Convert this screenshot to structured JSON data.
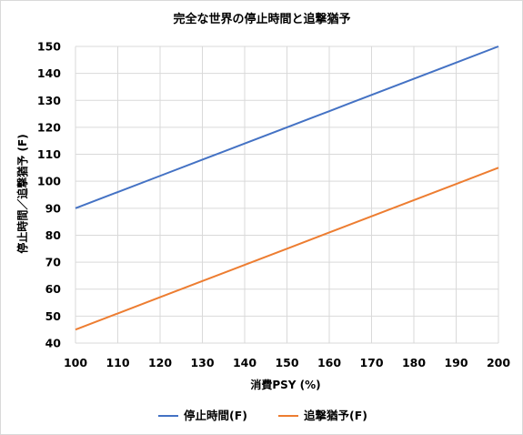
{
  "chart_data": {
    "type": "line",
    "title": "完全な世界の停止時間と追撃猶予",
    "xlabel": "消費PSY (%)",
    "ylabel": "停止時間／追撃猶予 (F)",
    "xlim": [
      100,
      200
    ],
    "ylim": [
      40,
      150
    ],
    "xticks": [
      "100",
      "110",
      "120",
      "130",
      "140",
      "150",
      "160",
      "170",
      "180",
      "190",
      "200"
    ],
    "yticks": [
      "40",
      "50",
      "60",
      "70",
      "80",
      "90",
      "100",
      "110",
      "120",
      "130",
      "140",
      "150"
    ],
    "grid": true,
    "legend_position": "bottom",
    "series": [
      {
        "name": "停止時間(F)",
        "color": "#4472c4",
        "x": [
          100,
          110,
          120,
          130,
          140,
          150,
          160,
          170,
          180,
          190,
          200
        ],
        "values": [
          90,
          96,
          102,
          108,
          114,
          120,
          126,
          132,
          138,
          144,
          150
        ]
      },
      {
        "name": "追撃猶予(F)",
        "color": "#ed7d31",
        "x": [
          100,
          110,
          120,
          130,
          140,
          150,
          160,
          170,
          180,
          190,
          200
        ],
        "values": [
          45,
          51,
          57,
          63,
          69,
          75,
          81,
          87,
          93,
          99,
          105
        ]
      }
    ]
  }
}
